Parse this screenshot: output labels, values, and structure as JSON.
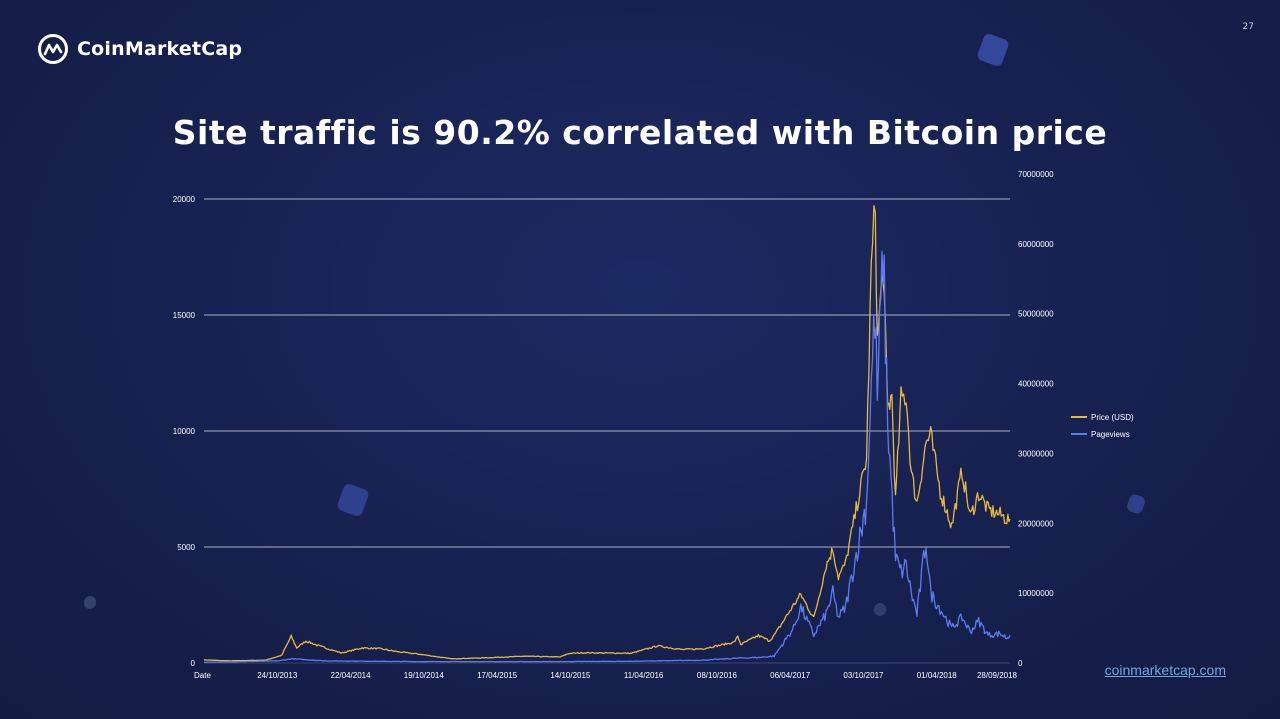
{
  "brand": {
    "name": "CoinMarketCap",
    "logo_icon": "coinmarketcap-logo-icon"
  },
  "page_number": "27",
  "title": "Site traffic is 90.2% correlated with Bitcoin price",
  "footer_link": "coinmarketcap.com",
  "colors": {
    "price": "#e8b83c",
    "pageviews": "#5b7cf0",
    "grid": "#c9ccd8",
    "tick_text": "#ffffff"
  },
  "chart_data": {
    "type": "line",
    "title": "Site traffic is 90.2% correlated with Bitcoin price",
    "x_tick_labels": [
      "Date",
      "24/10/2013",
      "22/04/2014",
      "19/10/2014",
      "17/04/2015",
      "14/10/2015",
      "11/04/2016",
      "08/10/2016",
      "06/04/2017",
      "03/10/2017",
      "01/04/2018",
      "28/09/2018"
    ],
    "x_range": [
      "2013-04-28",
      "2018-11-22"
    ],
    "y_left": {
      "ticks": [
        0,
        5000,
        10000,
        15000,
        20000
      ],
      "range": [
        0,
        20000
      ]
    },
    "y_right": {
      "ticks": [
        0,
        10000000,
        20000000,
        30000000,
        40000000,
        50000000,
        60000000,
        70000000
      ],
      "range": [
        0,
        70000000
      ]
    },
    "legend": [
      "Price (USD)",
      "Pageviews"
    ],
    "legend_position": "right",
    "grid": true,
    "series": [
      {
        "name": "Price (USD)",
        "axis": "left",
        "points": [
          [
            "2013-04-28",
            135
          ],
          [
            "2013-07-01",
            90
          ],
          [
            "2013-10-01",
            125
          ],
          [
            "2013-11-10",
            330
          ],
          [
            "2013-12-04",
            1150
          ],
          [
            "2013-12-18",
            650
          ],
          [
            "2014-01-10",
            950
          ],
          [
            "2014-02-10",
            750
          ],
          [
            "2014-03-10",
            600
          ],
          [
            "2014-04-10",
            430
          ],
          [
            "2014-06-01",
            650
          ],
          [
            "2014-07-15",
            620
          ],
          [
            "2014-09-01",
            480
          ],
          [
            "2014-10-19",
            390
          ],
          [
            "2015-01-14",
            180
          ],
          [
            "2015-04-17",
            230
          ],
          [
            "2015-07-15",
            290
          ],
          [
            "2015-10-14",
            260
          ],
          [
            "2015-11-04",
            410
          ],
          [
            "2015-12-15",
            440
          ],
          [
            "2016-04-11",
            420
          ],
          [
            "2016-06-16",
            740
          ],
          [
            "2016-08-15",
            580
          ],
          [
            "2016-10-08",
            615
          ],
          [
            "2016-12-25",
            890
          ],
          [
            "2017-01-04",
            1130
          ],
          [
            "2017-01-12",
            800
          ],
          [
            "2017-02-25",
            1180
          ],
          [
            "2017-03-25",
            960
          ],
          [
            "2017-04-06",
            1190
          ],
          [
            "2017-05-25",
            2500
          ],
          [
            "2017-06-12",
            2950
          ],
          [
            "2017-07-15",
            1930
          ],
          [
            "2017-08-15",
            4200
          ],
          [
            "2017-09-01",
            4900
          ],
          [
            "2017-09-15",
            3700
          ],
          [
            "2017-10-03",
            4300
          ],
          [
            "2017-11-08",
            7400
          ],
          [
            "2017-11-25",
            8800
          ],
          [
            "2017-12-07",
            17000
          ],
          [
            "2017-12-17",
            19800
          ],
          [
            "2017-12-22",
            13800
          ],
          [
            "2018-01-06",
            17100
          ],
          [
            "2018-01-17",
            11000
          ],
          [
            "2018-01-28",
            11500
          ],
          [
            "2018-02-06",
            7000
          ],
          [
            "2018-02-20",
            11400
          ],
          [
            "2018-03-05",
            11500
          ],
          [
            "2018-03-18",
            8200
          ],
          [
            "2018-04-01",
            6900
          ],
          [
            "2018-04-24",
            9500
          ],
          [
            "2018-05-06",
            9800
          ],
          [
            "2018-05-30",
            7400
          ],
          [
            "2018-06-28",
            5900
          ],
          [
            "2018-07-24",
            8300
          ],
          [
            "2018-08-14",
            6300
          ],
          [
            "2018-09-04",
            7300
          ],
          [
            "2018-09-28",
            6600
          ],
          [
            "2018-10-28",
            6400
          ],
          [
            "2018-11-14",
            6200
          ],
          [
            "2018-11-22",
            6200
          ]
        ]
      },
      {
        "name": "Pageviews",
        "axis": "right",
        "points": [
          [
            "2013-04-28",
            100000
          ],
          [
            "2013-11-01",
            300000
          ],
          [
            "2013-12-05",
            600000
          ],
          [
            "2014-03-01",
            300000
          ],
          [
            "2014-10-19",
            200000
          ],
          [
            "2015-10-14",
            200000
          ],
          [
            "2016-04-11",
            250000
          ],
          [
            "2016-10-08",
            400000
          ],
          [
            "2017-01-05",
            700000
          ],
          [
            "2017-03-01",
            800000
          ],
          [
            "2017-04-06",
            1000000
          ],
          [
            "2017-05-25",
            5000000
          ],
          [
            "2017-06-12",
            8000000
          ],
          [
            "2017-07-15",
            4000000
          ],
          [
            "2017-08-15",
            7000000
          ],
          [
            "2017-09-01",
            10000000
          ],
          [
            "2017-09-15",
            6500000
          ],
          [
            "2017-10-03",
            8000000
          ],
          [
            "2017-11-08",
            18000000
          ],
          [
            "2017-11-25",
            23000000
          ],
          [
            "2017-12-07",
            40000000
          ],
          [
            "2017-12-16",
            50000000
          ],
          [
            "2017-12-22",
            38000000
          ],
          [
            "2018-01-06",
            59000000
          ],
          [
            "2018-01-17",
            35000000
          ],
          [
            "2018-02-06",
            15000000
          ],
          [
            "2018-02-20",
            13000000
          ],
          [
            "2018-03-05",
            14000000
          ],
          [
            "2018-03-18",
            10000000
          ],
          [
            "2018-04-01",
            7000000
          ],
          [
            "2018-04-24",
            17500000
          ],
          [
            "2018-05-06",
            10000000
          ],
          [
            "2018-06-28",
            5000000
          ],
          [
            "2018-07-24",
            6500000
          ],
          [
            "2018-08-14",
            4500000
          ],
          [
            "2018-09-04",
            6000000
          ],
          [
            "2018-09-28",
            4000000
          ],
          [
            "2018-10-28",
            4200000
          ],
          [
            "2018-11-14",
            3600000
          ],
          [
            "2018-11-22",
            4000000
          ]
        ]
      }
    ]
  }
}
